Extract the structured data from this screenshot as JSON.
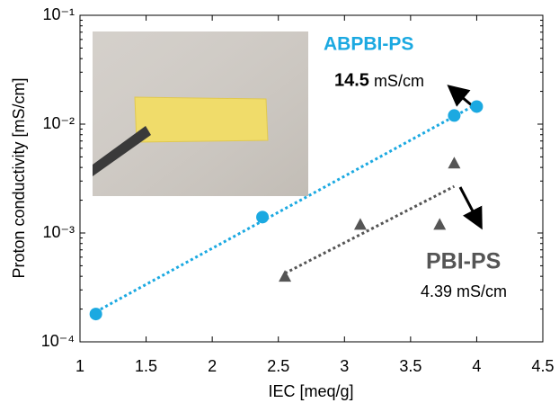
{
  "chart_data": {
    "type": "scatter",
    "x_label": "IEC [meq/g]",
    "y_label": "Proton conductivity [mS/cm]",
    "xlim": [
      1,
      4.5
    ],
    "xticks": [
      1,
      1.5,
      2,
      2.5,
      3,
      3.5,
      4,
      4.5
    ],
    "ylim": [
      0.0001,
      0.1
    ],
    "y_scale": "log",
    "yticks": [
      {
        "value": 0.0001,
        "label": "10⁻⁴"
      },
      {
        "value": 0.001,
        "label": "10⁻³"
      },
      {
        "value": 0.01,
        "label": "10⁻²"
      },
      {
        "value": 0.1,
        "label": "10⁻¹"
      }
    ],
    "trendline": true,
    "series": [
      {
        "name": "ABPBI-PS",
        "color": "#1ba9e1",
        "marker": "circle",
        "x": [
          1.12,
          2.38,
          3.83,
          4.0
        ],
        "values": [
          0.00018,
          0.0014,
          0.012,
          0.0145
        ]
      },
      {
        "name": "PBI-PS",
        "color": "#555555",
        "marker": "triangle",
        "x": [
          2.55,
          3.12,
          3.72,
          3.83
        ],
        "values": [
          0.0004,
          0.0012,
          0.0012,
          0.00439
        ]
      }
    ],
    "annotations": [
      "14.5",
      "mS/cm",
      "4.39 mS/cm"
    ]
  }
}
